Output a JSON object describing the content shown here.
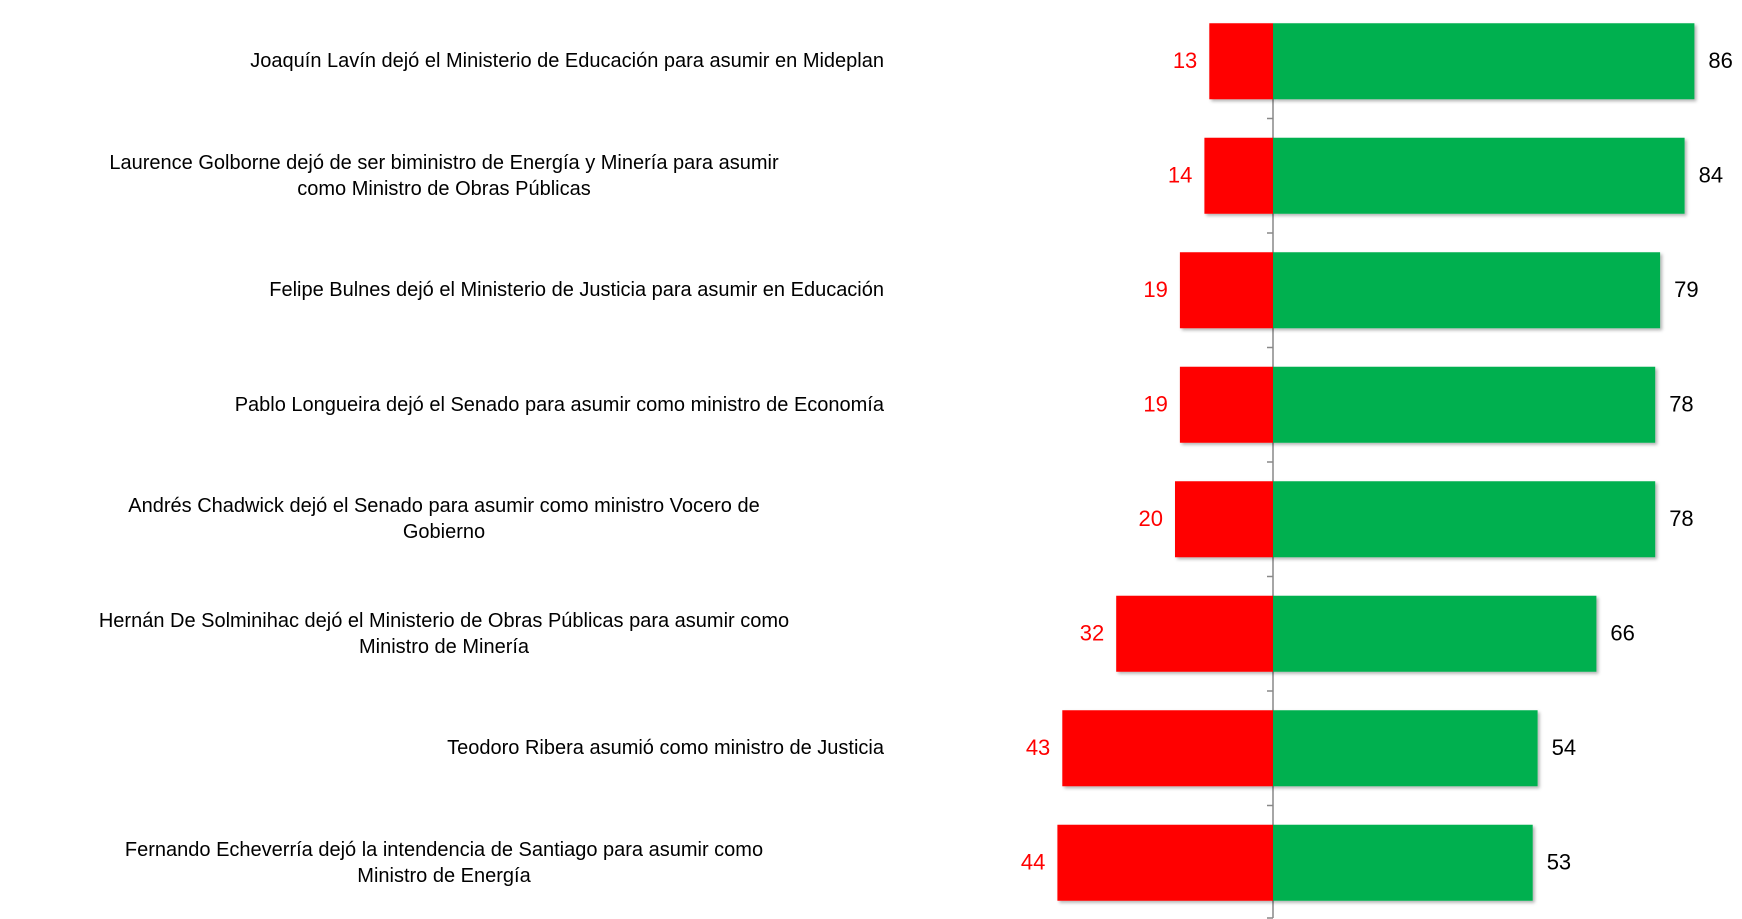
{
  "chart_data": {
    "type": "diverging_bar",
    "categories": [
      "Joaquín Lavín dejó el Ministerio de Educación para asumir en Mideplan",
      "Laurence Golborne dejó de ser biministro de Energía y Minería para asumir\ncomo Ministro de Obras Públicas",
      "Felipe Bulnes dejó el Ministerio de Justicia para asumir en Educación",
      "Pablo Longueira dejó el Senado para asumir como ministro de Economía",
      "Andrés Chadwick dejó el Senado para asumir como ministro Vocero de\nGobierno",
      "Hernán De Solminihac dejó el Ministerio de Obras Públicas para asumir como\nMinistro de Minería",
      "Teodoro Ribera asumió como ministro de Justicia",
      "Fernando Echeverría dejó la intendencia de Santiago para asumir como\nMinistro de Energía"
    ],
    "series": [
      {
        "color": "#ff0000",
        "label_color": "#ff0000",
        "side": "left",
        "values": [
          13,
          14,
          19,
          19,
          20,
          32,
          43,
          44
        ]
      },
      {
        "color": "#00b050",
        "label_color": "#000000",
        "side": "right",
        "values": [
          86,
          84,
          79,
          78,
          78,
          66,
          54,
          53
        ]
      }
    ]
  }
}
